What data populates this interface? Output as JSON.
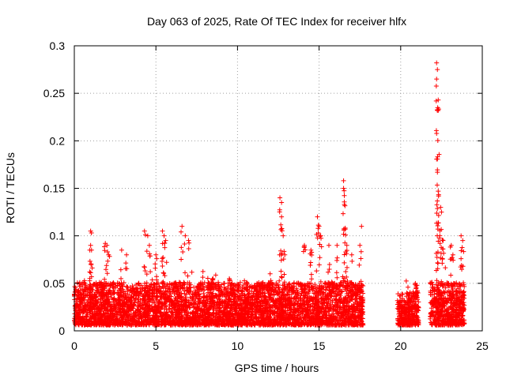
{
  "chart_data": {
    "type": "scatter",
    "title": "Day 063 of 2025, Rate Of TEC Index for receiver hlfx",
    "xlabel": "GPS time / hours",
    "ylabel": "ROTI / TECUs",
    "xlim": [
      0,
      25
    ],
    "ylim": [
      0,
      0.3
    ],
    "xticks": [
      0,
      5,
      10,
      15,
      20,
      25
    ],
    "xtick_labels": [
      "0",
      "5",
      "10",
      "15",
      "20",
      "25"
    ],
    "yticks": [
      0,
      0.05,
      0.1,
      0.15,
      0.2,
      0.25,
      0.3
    ],
    "ytick_labels": [
      "0",
      "0.05",
      "0.1",
      "0.15",
      "0.2",
      "0.25",
      "0.3"
    ],
    "grid": true,
    "marker": "+",
    "color": "#ff0000",
    "series": [
      {
        "name": "ROTI",
        "envelope_description": "dense band of ROTI samples between 0 and ~0.04 TECU/s from 0 to 17.7 h, gap 17.7–19.8 h, second segment 19.8–21.1 h, gap 21.1–21.8 h, third segment 21.8–23.9 h",
        "dense_segments": [
          {
            "start": 0.0,
            "end": 17.7,
            "typical_max": 0.045
          },
          {
            "start": 19.8,
            "end": 21.1,
            "typical_max": 0.035
          },
          {
            "start": 21.8,
            "end": 23.9,
            "typical_max": 0.045
          }
        ],
        "spikes": [
          [
            1.0,
            0.105
          ],
          [
            1.05,
            0.103
          ],
          [
            1.0,
            0.09
          ],
          [
            0.95,
            0.085
          ],
          [
            1.9,
            0.092
          ],
          [
            2.0,
            0.09
          ],
          [
            2.1,
            0.08
          ],
          [
            2.9,
            0.085
          ],
          [
            3.2,
            0.08
          ],
          [
            4.3,
            0.105
          ],
          [
            4.5,
            0.1
          ],
          [
            4.6,
            0.09
          ],
          [
            5.0,
            0.08
          ],
          [
            5.4,
            0.105
          ],
          [
            5.5,
            0.1
          ],
          [
            5.6,
            0.095
          ],
          [
            6.6,
            0.11
          ],
          [
            6.8,
            0.1
          ],
          [
            7.0,
            0.095
          ],
          [
            8.5,
            0.055
          ],
          [
            9.5,
            0.055
          ],
          [
            11.2,
            0.05
          ],
          [
            12.0,
            0.06
          ],
          [
            12.6,
            0.14
          ],
          [
            12.7,
            0.135
          ],
          [
            12.7,
            0.12
          ],
          [
            12.8,
            0.1
          ],
          [
            12.9,
            0.08
          ],
          [
            14.1,
            0.09
          ],
          [
            14.5,
            0.085
          ],
          [
            14.9,
            0.12
          ],
          [
            15.0,
            0.11
          ],
          [
            15.1,
            0.1
          ],
          [
            15.6,
            0.09
          ],
          [
            16.1,
            0.09
          ],
          [
            16.5,
            0.158
          ],
          [
            16.5,
            0.15
          ],
          [
            16.55,
            0.133
          ],
          [
            16.6,
            0.107
          ],
          [
            16.7,
            0.09
          ],
          [
            17.0,
            0.08
          ],
          [
            17.6,
            0.11
          ],
          [
            17.5,
            0.09
          ],
          [
            20.9,
            0.05
          ],
          [
            21.0,
            0.048
          ],
          [
            22.2,
            0.282
          ],
          [
            22.25,
            0.275
          ],
          [
            22.2,
            0.265
          ],
          [
            22.3,
            0.243
          ],
          [
            22.25,
            0.232
          ],
          [
            22.3,
            0.232
          ],
          [
            22.3,
            0.147
          ],
          [
            22.45,
            0.13
          ],
          [
            22.5,
            0.125
          ],
          [
            22.4,
            0.1
          ],
          [
            22.6,
            0.095
          ],
          [
            23.1,
            0.09
          ],
          [
            23.2,
            0.08
          ],
          [
            23.7,
            0.1
          ],
          [
            23.8,
            0.095
          ]
        ]
      }
    ]
  }
}
